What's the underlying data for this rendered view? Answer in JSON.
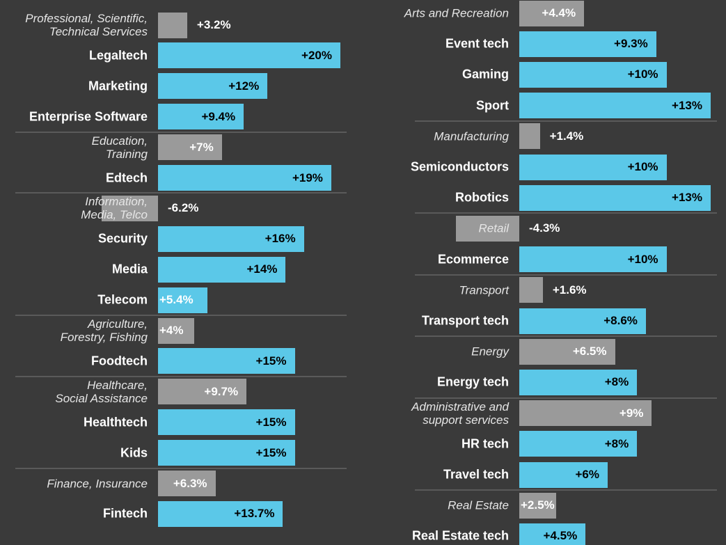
{
  "chart_data": [
    {
      "type": "bar",
      "categories": [
        "Professional, Scientific,\nTechnical Services",
        "Legaltech",
        "Marketing",
        "Enterprise Software",
        "Education,\nTraining",
        "Edtech",
        "Information,\nMedia, Telco",
        "Security",
        "Media",
        "Telecom",
        "Agriculture,\nForestry, Fishing",
        "Foodtech",
        "Healthcare,\nSocial Assistance",
        "Healthtech",
        "Kids",
        "Finance, Insurance",
        "Fintech"
      ],
      "values": [
        3.2,
        20,
        12,
        9.4,
        7,
        19,
        -6.2,
        16,
        14,
        5.4,
        4,
        15,
        9.7,
        15,
        15,
        6.3,
        13.7
      ],
      "value_labels": [
        "+3.2%",
        "+20%",
        "+12%",
        "+9.4%",
        "+7%",
        "+19%",
        "-6.2%",
        "+16%",
        "+14%",
        "+5.4%",
        "+4%",
        "+15%",
        "+9.7%",
        "+15%",
        "+15%",
        "+6.3%",
        "+13.7%"
      ],
      "colors": [
        "#9a9a9a",
        "#5bc8e8",
        "#5bc8e8",
        "#5bc8e8",
        "#9a9a9a",
        "#5bc8e8",
        "#9a9a9a",
        "#5bc8e8",
        "#5bc8e8",
        "#5bc8e8",
        "#9a9a9a",
        "#5bc8e8",
        "#9a9a9a",
        "#5bc8e8",
        "#5bc8e8",
        "#9a9a9a",
        "#5bc8e8"
      ]
    },
    {
      "type": "bar",
      "categories": [
        "Arts and Recreation",
        "Event tech",
        "Gaming",
        "Sport",
        "Manufacturing",
        "Semiconductors",
        "Robotics",
        "Retail",
        "Ecommerce",
        "Transport",
        "Transport tech",
        "Energy",
        "Energy tech",
        "Administrative and\nsupport services",
        "HR tech",
        "Travel tech",
        "Real Estate",
        "Real Estate tech"
      ],
      "values": [
        4.4,
        9.3,
        10,
        13,
        1.4,
        10,
        13,
        -4.3,
        10,
        1.6,
        8.6,
        6.5,
        8,
        9,
        8,
        6,
        2.5,
        4.5
      ],
      "value_labels": [
        "+4.4%",
        "+9.3%",
        "+10%",
        "+13%",
        "+1.4%",
        "+10%",
        "+13%",
        "-4.3%",
        "+10%",
        "+1.6%",
        "+8.6%",
        "+6.5%",
        "+8%",
        "+9%",
        "+8%",
        "+6%",
        "+2.5%",
        "+4.5%"
      ],
      "colors": [
        "#9a9a9a",
        "#5bc8e8",
        "#5bc8e8",
        "#5bc8e8",
        "#9a9a9a",
        "#5bc8e8",
        "#5bc8e8",
        "#9a9a9a",
        "#5bc8e8",
        "#9a9a9a",
        "#5bc8e8",
        "#9a9a9a",
        "#5bc8e8",
        "#9a9a9a",
        "#5bc8e8",
        "#5bc8e8",
        "#9a9a9a",
        "#5bc8e8"
      ]
    }
  ]
}
